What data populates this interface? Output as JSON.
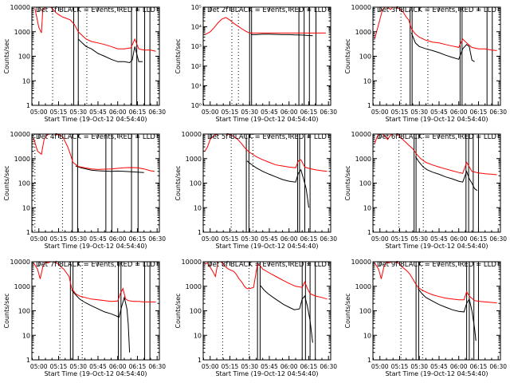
{
  "xlabel": "Start Time (19-Oct-12 04:54:40)",
  "ylabel": "Counts/sec",
  "x_tick_labels": [
    "05:00",
    "05:15",
    "05:30",
    "05:45",
    "06:00",
    "06:15",
    "06:30"
  ],
  "x_range_minutes_after_05_00": [
    -5.3,
    91.7
  ],
  "y_scale": "log",
  "colors": {
    "events": "#000000",
    "lld": "#ff0000",
    "axes": "#000000"
  },
  "chart_data": [
    {
      "type": "line",
      "title": "Det 1f BLACK = Events, RED = LLD",
      "ylim": [
        1,
        10000
      ],
      "y_tick_labels": [
        "1",
        "10",
        "100",
        "1000",
        "10000"
      ],
      "x_unit": "minutes after 05:00",
      "dotted_lines_x": [
        10.5,
        36.5
      ],
      "solid_lines_x": [
        26.5,
        30.0,
        70.5,
        74.5,
        80.5,
        84.5
      ],
      "series": [
        {
          "name": "BLACK = Events",
          "x": [
            30,
            33,
            36,
            40,
            45,
            50,
            55,
            60,
            65,
            69,
            71,
            73,
            76,
            79
          ],
          "y": [
            500,
            350,
            250,
            200,
            130,
            100,
            75,
            60,
            60,
            55,
            70,
            250,
            60,
            60
          ]
        },
        {
          "name": "RED = LLD",
          "x": [
            -3,
            0,
            2,
            3,
            5,
            7,
            9,
            11,
            13,
            15,
            18,
            21,
            24,
            27,
            30,
            33,
            36,
            40,
            45,
            50,
            55,
            60,
            65,
            70,
            73,
            76,
            80,
            85,
            89
          ],
          "y": [
            9000,
            1500,
            900,
            8000,
            10000,
            10000,
            10000,
            8000,
            6000,
            5000,
            4000,
            3500,
            3000,
            2000,
            1000,
            700,
            500,
            400,
            350,
            300,
            250,
            200,
            200,
            220,
            500,
            200,
            180,
            180,
            160
          ]
        }
      ]
    },
    {
      "type": "line",
      "title": "Det 2f BLACK = Events, RED = LLD",
      "ylim": [
        1,
        100000
      ],
      "y_tick_labels": [
        "10⁰",
        "10¹",
        "10²",
        "10³",
        "10⁴",
        "10⁵"
      ],
      "x_unit": "minutes after 05:00",
      "dotted_lines_x": [
        16.5,
        21.5
      ],
      "solid_lines_x": [
        30.0,
        31.5,
        67.5,
        71.5,
        75.5,
        80.5
      ],
      "series": [
        {
          "name": "BLACK = Events",
          "x": [
            31,
            35,
            40,
            45,
            50,
            55,
            60,
            65,
            70,
            75,
            78
          ],
          "y": [
            4000,
            4000,
            4200,
            4200,
            4100,
            4000,
            4000,
            3900,
            3800,
            3600,
            3500
          ]
        },
        {
          "name": "RED = LLD",
          "x": [
            -4,
            0,
            3,
            6,
            9,
            12,
            15,
            18,
            21,
            24,
            27,
            30,
            33,
            40,
            50,
            60,
            70,
            80,
            88
          ],
          "y": [
            4000,
            5500,
            9000,
            16000,
            25000,
            30000,
            22000,
            15000,
            11000,
            8000,
            6000,
            4800,
            4800,
            4800,
            4800,
            4800,
            4800,
            4800,
            4800
          ]
        }
      ]
    },
    {
      "type": "line",
      "title": "Det 3f BLACK = Events, RED = LLD",
      "ylim": [
        1,
        10000
      ],
      "y_tick_labels": [
        "1",
        "10",
        "100",
        "1000",
        "10000"
      ],
      "x_unit": "minutes after 05:00",
      "dotted_lines_x": [
        16.0,
        36.5
      ],
      "solid_lines_x": [
        23.0,
        24.5,
        61.0,
        62.5,
        81.5,
        85.5
      ],
      "series": [
        {
          "name": "BLACK = Events",
          "x": [
            24,
            27,
            30,
            35,
            40,
            45,
            50,
            55,
            60,
            63,
            66,
            68,
            70,
            72
          ],
          "y": [
            900,
            350,
            250,
            200,
            170,
            140,
            110,
            90,
            75,
            200,
            300,
            250,
            70,
            60
          ]
        },
        {
          "name": "RED = LLD",
          "x": [
            -4,
            -1,
            2,
            4,
            6,
            8,
            10,
            12,
            14,
            16,
            18,
            20,
            22,
            24,
            27,
            30,
            35,
            40,
            45,
            50,
            55,
            60,
            63,
            66,
            70,
            75,
            80,
            85,
            89
          ],
          "y": [
            500,
            2000,
            8000,
            10000,
            10000,
            8000,
            10000,
            10000,
            9000,
            8000,
            6000,
            4000,
            3000,
            1300,
            800,
            600,
            450,
            380,
            350,
            300,
            260,
            230,
            500,
            350,
            230,
            200,
            200,
            180,
            170
          ]
        }
      ]
    },
    {
      "type": "line",
      "title": "Det 4f BLACK = Events, RED = LLD",
      "ylim": [
        1,
        10000
      ],
      "y_tick_labels": [
        "1",
        "10",
        "100",
        "1000",
        "10000"
      ],
      "x_unit": "minutes after 05:00",
      "dotted_lines_x": [
        -3.0,
        18.0
      ],
      "solid_lines_x": [
        25.5,
        29.5,
        51.0,
        55.5,
        70.5,
        75.5
      ],
      "series": [
        {
          "name": "BLACK = Events",
          "x": [
            28,
            32,
            36,
            40,
            45,
            50,
            55,
            60,
            65,
            70,
            75,
            80
          ],
          "y": [
            500,
            420,
            380,
            340,
            320,
            310,
            300,
            310,
            300,
            290,
            280,
            270
          ]
        },
        {
          "name": "RED = LLD",
          "x": [
            -4,
            -1,
            2,
            4,
            6,
            8,
            10,
            12,
            14,
            16,
            18,
            20,
            22,
            24,
            26,
            30,
            35,
            40,
            45,
            50,
            55,
            60,
            65,
            70,
            75,
            80,
            85,
            88
          ],
          "y": [
            7000,
            2000,
            1500,
            6000,
            9000,
            10000,
            10000,
            10000,
            9500,
            9000,
            8000,
            5000,
            3000,
            1500,
            700,
            480,
            420,
            380,
            360,
            370,
            380,
            400,
            420,
            430,
            420,
            380,
            320,
            300
          ]
        }
      ]
    },
    {
      "type": "line",
      "title": "Det 5f BLACK = Events, RED = LLD",
      "ylim": [
        1,
        10000
      ],
      "y_tick_labels": [
        "1",
        "10",
        "100",
        "1000",
        "10000"
      ],
      "x_unit": "minutes after 05:00",
      "dotted_lines_x": [
        16.0,
        32.5
      ],
      "solid_lines_x": [
        27.5,
        29.5,
        66.5,
        68.0,
        72.0,
        76.0
      ],
      "series": [
        {
          "name": "BLACK = Events",
          "x": [
            28,
            31,
            35,
            40,
            45,
            50,
            55,
            60,
            65,
            67,
            69,
            71,
            73,
            75
          ],
          "y": [
            800,
            600,
            420,
            300,
            230,
            180,
            140,
            120,
            110,
            250,
            350,
            150,
            60,
            10
          ]
        },
        {
          "name": "RED = LLD",
          "x": [
            -4,
            -2,
            0,
            3,
            6,
            9,
            12,
            15,
            18,
            21,
            24,
            27,
            30,
            35,
            40,
            45,
            50,
            55,
            60,
            65,
            67,
            69,
            72,
            75,
            80,
            85,
            89
          ],
          "y": [
            2000,
            3000,
            6000,
            9000,
            10000,
            10000,
            10000,
            9500,
            8000,
            6000,
            4000,
            2500,
            1800,
            1200,
            900,
            700,
            550,
            500,
            450,
            420,
            800,
            900,
            450,
            400,
            350,
            320,
            300
          ]
        }
      ]
    },
    {
      "type": "line",
      "title": "Det 6f BLACK = Events, RED = LLD",
      "ylim": [
        1,
        10000
      ],
      "y_tick_labels": [
        "1",
        "10",
        "100",
        "1000",
        "10000"
      ],
      "x_unit": "minutes after 05:00",
      "dotted_lines_x": [
        14.5,
        33.0
      ],
      "solid_lines_x": [
        26.0,
        27.5,
        65.5,
        67.5,
        71.0,
        75.0
      ],
      "series": [
        {
          "name": "BLACK = Events",
          "x": [
            27,
            30,
            33,
            36,
            40,
            45,
            50,
            55,
            60,
            63,
            66,
            68,
            70,
            72,
            74
          ],
          "y": [
            1200,
            700,
            450,
            350,
            280,
            230,
            180,
            150,
            120,
            110,
            300,
            150,
            100,
            60,
            50
          ]
        },
        {
          "name": "RED = LLD",
          "x": [
            -4,
            -2,
            0,
            2,
            4,
            6,
            8,
            10,
            13,
            16,
            19,
            22,
            25,
            28,
            31,
            35,
            40,
            45,
            50,
            55,
            60,
            63,
            66,
            70,
            75,
            80,
            85,
            89
          ],
          "y": [
            4000,
            8000,
            10000,
            10000,
            8000,
            6000,
            9000,
            10000,
            10000,
            7000,
            5000,
            3500,
            2500,
            1500,
            1000,
            700,
            550,
            450,
            380,
            320,
            270,
            250,
            700,
            300,
            260,
            240,
            230,
            220
          ]
        }
      ]
    },
    {
      "type": "line",
      "title": "Det 7f BLACK = Events, RED = LLD",
      "ylim": [
        1,
        10000
      ],
      "y_tick_labels": [
        "1",
        "10",
        "100",
        "1000",
        "10000"
      ],
      "x_unit": "minutes after 05:00",
      "dotted_lines_x": [
        16.0,
        33.0
      ],
      "solid_lines_x": [
        24.0,
        26.0,
        60.5,
        62.5,
        80.5,
        84.5
      ],
      "series": [
        {
          "name": "BLACK = Events",
          "x": [
            25,
            28,
            31,
            35,
            40,
            45,
            50,
            55,
            58,
            61,
            63,
            65,
            67,
            68,
            69
          ],
          "y": [
            700,
            450,
            300,
            220,
            160,
            120,
            90,
            75,
            65,
            55,
            150,
            350,
            120,
            30,
            2
          ]
        },
        {
          "name": "RED = LLD",
          "x": [
            -4,
            -1,
            1,
            3,
            5,
            7,
            9,
            11,
            13,
            15,
            17,
            19,
            21,
            23,
            25,
            28,
            31,
            35,
            40,
            45,
            50,
            55,
            60,
            62,
            64,
            66,
            68,
            72,
            76,
            80,
            85,
            89
          ],
          "y": [
            9000,
            5000,
            2000,
            6000,
            10000,
            9000,
            10000,
            10000,
            9000,
            8000,
            6000,
            5000,
            3500,
            2500,
            800,
            500,
            400,
            350,
            300,
            280,
            260,
            240,
            250,
            500,
            800,
            300,
            260,
            240,
            240,
            230,
            230,
            230
          ]
        }
      ]
    },
    {
      "type": "line",
      "title": "Det 8f BLACK = Events, RED = LLD",
      "ylim": [
        1,
        10000
      ],
      "y_tick_labels": [
        "1",
        "10",
        "100",
        "1000",
        "10000"
      ],
      "x_unit": "minutes after 05:00",
      "dotted_lines_x": [
        9.5,
        29.5
      ],
      "solid_lines_x": [
        36.0,
        38.0,
        70.0,
        72.5,
        76.0,
        80.0
      ],
      "series": [
        {
          "name": "BLACK = Events",
          "x": [
            38,
            41,
            44,
            48,
            52,
            56,
            60,
            64,
            68,
            70,
            72,
            74,
            76,
            78
          ],
          "y": [
            1100,
            700,
            500,
            350,
            250,
            180,
            140,
            110,
            120,
            300,
            400,
            150,
            40,
            5
          ]
        },
        {
          "name": "RED = LLD",
          "x": [
            -4,
            -2,
            0,
            2,
            4,
            6,
            8,
            10,
            12,
            14,
            16,
            18,
            20,
            22,
            24,
            26,
            28,
            30,
            33,
            36,
            38,
            40,
            45,
            50,
            55,
            60,
            65,
            70,
            72,
            74,
            76,
            80,
            85,
            89
          ],
          "y": [
            8000,
            9000,
            6000,
            4000,
            2500,
            10000,
            10000,
            8000,
            6000,
            5000,
            4500,
            4000,
            3000,
            2000,
            1500,
            1000,
            800,
            800,
            900,
            8000,
            7000,
            5000,
            3500,
            2500,
            1800,
            1300,
            1000,
            900,
            1500,
            800,
            500,
            400,
            350,
            300
          ]
        }
      ]
    },
    {
      "type": "line",
      "title": "Det 9f BLACK = Events, RED = LLD",
      "ylim": [
        1,
        10000
      ],
      "y_tick_labels": [
        "1",
        "10",
        "100",
        "1000",
        "10000"
      ],
      "x_unit": "minutes after 05:00",
      "dotted_lines_x": [
        16.0,
        32.5
      ],
      "solid_lines_x": [
        27.5,
        29.5,
        66.0,
        68.0,
        71.5,
        75.0
      ],
      "series": [
        {
          "name": "BLACK = Events",
          "x": [
            29,
            32,
            35,
            40,
            45,
            50,
            55,
            60,
            64,
            66,
            68,
            70,
            72,
            73
          ],
          "y": [
            800,
            500,
            350,
            250,
            180,
            140,
            110,
            95,
            90,
            200,
            300,
            100,
            20,
            6
          ]
        },
        {
          "name": "RED = LLD",
          "x": [
            -4,
            -1,
            1,
            3,
            5,
            7,
            9,
            11,
            13,
            15,
            17,
            19,
            21,
            23,
            25,
            27,
            29,
            32,
            36,
            40,
            45,
            50,
            55,
            60,
            64,
            66,
            68,
            72,
            76,
            80,
            85,
            89
          ],
          "y": [
            9000,
            5000,
            2000,
            6000,
            10000,
            9000,
            10000,
            10000,
            9500,
            8000,
            6000,
            5000,
            4000,
            3000,
            2000,
            1300,
            900,
            700,
            550,
            450,
            380,
            330,
            300,
            280,
            280,
            600,
            400,
            260,
            240,
            230,
            220,
            210
          ]
        }
      ]
    }
  ]
}
